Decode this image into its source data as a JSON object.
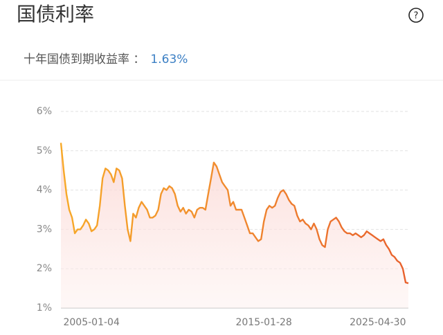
{
  "header": {
    "title": "国债利率",
    "help_icon": "?",
    "subtitle_label": "十年国债到期收益率 ：",
    "subtitle_value": "1.63%"
  },
  "chart_data": {
    "type": "line",
    "categories": [
      null,
      null,
      null,
      null,
      null,
      null,
      null,
      null,
      null,
      null,
      null,
      "2005-01-04",
      null,
      null,
      null,
      null,
      null,
      null,
      null,
      null,
      null,
      null,
      null,
      null,
      null,
      null,
      null,
      null,
      null,
      null,
      null,
      null,
      null,
      null,
      null,
      null,
      null,
      null,
      null,
      null,
      null,
      null,
      null,
      null,
      null,
      null,
      null,
      null,
      null,
      null,
      null,
      null,
      null,
      null,
      null,
      null,
      null,
      null,
      null,
      null,
      null,
      null,
      null,
      null,
      null,
      null,
      null,
      null,
      null,
      null,
      null,
      null,
      null,
      "2015-01-28",
      null,
      null,
      null,
      null,
      null,
      null,
      null,
      null,
      null,
      null,
      null,
      null,
      null,
      null,
      null,
      null,
      null,
      null,
      null,
      null,
      null,
      null,
      null,
      null,
      null,
      null,
      null,
      null,
      null,
      null,
      null,
      null,
      null,
      null,
      null,
      null,
      null,
      null,
      null,
      null,
      "2025-04-30",
      null,
      null,
      null,
      null,
      null,
      null,
      null,
      null,
      null,
      null,
      null
    ],
    "series": [
      {
        "color": "#f0892f",
        "values": [
          5.2,
          4.5,
          3.9,
          3.5,
          3.3,
          2.9,
          3.0,
          3.0,
          3.1,
          3.25,
          3.15,
          2.95,
          3.0,
          3.1,
          3.6,
          4.3,
          4.55,
          4.5,
          4.4,
          4.2,
          4.55,
          4.5,
          4.3,
          3.6,
          3.0,
          2.7,
          3.4,
          3.3,
          3.55,
          3.7,
          3.6,
          3.5,
          3.3,
          3.3,
          3.35,
          3.5,
          3.9,
          4.05,
          4.0,
          4.1,
          4.05,
          3.9,
          3.6,
          3.45,
          3.55,
          3.4,
          3.5,
          3.45,
          3.3,
          3.5,
          3.55,
          3.55,
          3.5,
          3.9,
          4.3,
          4.7,
          4.6,
          4.4,
          4.2,
          4.1,
          4.0,
          3.6,
          3.7,
          3.5,
          3.5,
          3.5,
          3.3,
          3.1,
          2.9,
          2.9,
          2.8,
          2.7,
          2.75,
          3.2,
          3.5,
          3.6,
          3.55,
          3.6,
          3.8,
          3.95,
          4.0,
          3.9,
          3.75,
          3.65,
          3.6,
          3.35,
          3.2,
          3.25,
          3.15,
          3.1,
          3.0,
          3.15,
          3.0,
          2.75,
          2.6,
          2.55,
          3.0,
          3.2,
          3.25,
          3.3,
          3.2,
          3.05,
          2.95,
          2.9,
          2.9,
          2.85,
          2.9,
          2.85,
          2.8,
          2.85,
          2.95,
          2.9,
          2.85,
          2.8,
          2.75,
          2.7,
          2.75,
          2.6,
          2.5,
          2.35,
          2.3,
          2.2,
          2.15,
          2.0,
          1.65,
          1.63
        ]
      }
    ],
    "ylim": [
      1,
      6
    ],
    "yticks": [
      {
        "value": 1,
        "label": "1%"
      },
      {
        "value": 2,
        "label": "2%"
      },
      {
        "value": 3,
        "label": "3%"
      },
      {
        "value": 4,
        "label": "4%"
      },
      {
        "value": 5,
        "label": "5%"
      },
      {
        "value": 6,
        "label": "6%"
      }
    ],
    "grid": true
  }
}
